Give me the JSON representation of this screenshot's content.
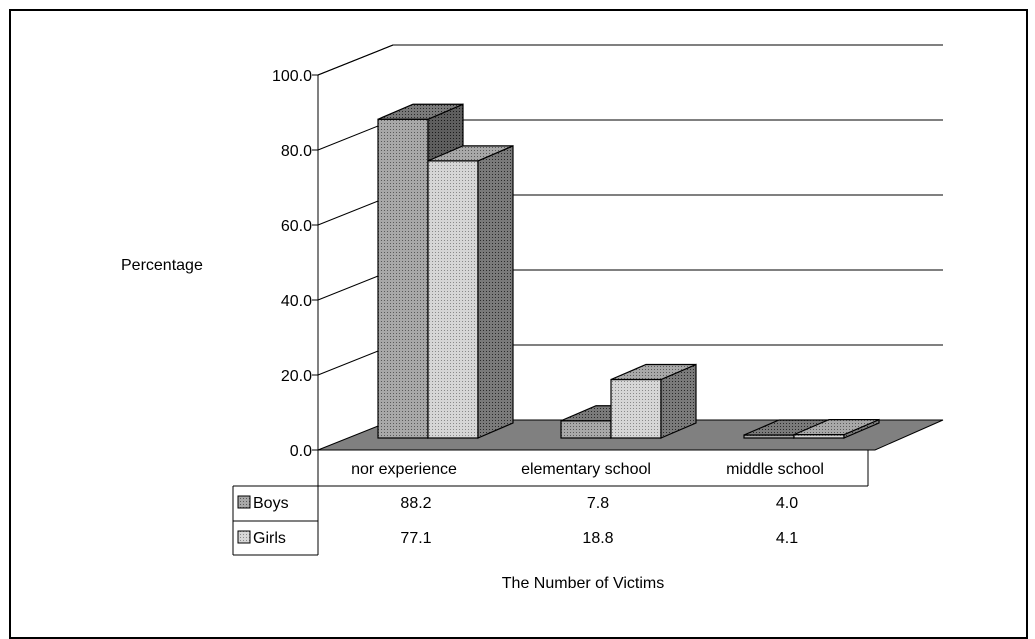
{
  "chart_data": {
    "type": "bar",
    "title": "",
    "ylabel": "Percentage",
    "xlabel": "The Number of Victims",
    "ylim": [
      0,
      100
    ],
    "yticks": [
      "0.0",
      "20.0",
      "40.0",
      "60.0",
      "80.0",
      "100.0"
    ],
    "grid": true,
    "legend": "data-table",
    "categories": [
      "nor experience",
      "elementary school",
      "middle school"
    ],
    "series": [
      {
        "name": "Boys",
        "values": [
          88.2,
          7.8,
          4.0
        ],
        "labels": [
          "88.2",
          "7.8",
          "4.0"
        ],
        "color": "#7a7a7a"
      },
      {
        "name": "Girls",
        "values": [
          77.1,
          18.8,
          4.1
        ],
        "labels": [
          "77.1",
          "18.8",
          "4.1"
        ],
        "color": "#c6c6c6"
      }
    ],
    "floor_color": "#808080"
  }
}
